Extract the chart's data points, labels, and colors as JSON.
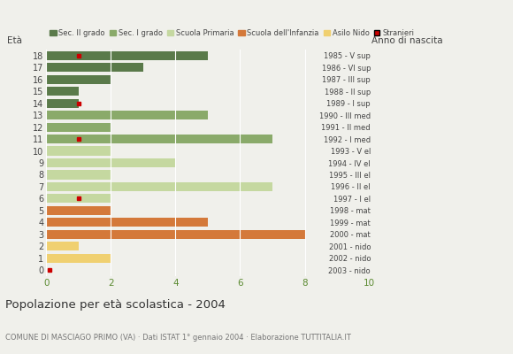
{
  "ages": [
    18,
    17,
    16,
    15,
    14,
    13,
    12,
    11,
    10,
    9,
    8,
    7,
    6,
    5,
    4,
    3,
    2,
    1,
    0
  ],
  "years": [
    "1985 - V sup",
    "1986 - VI sup",
    "1987 - III sup",
    "1988 - II sup",
    "1989 - I sup",
    "1990 - III med",
    "1991 - II med",
    "1992 - I med",
    "1993 - V el",
    "1994 - IV el",
    "1995 - III el",
    "1996 - II el",
    "1997 - I el",
    "1998 - mat",
    "1999 - mat",
    "2000 - mat",
    "2001 - nido",
    "2002 - nido",
    "2003 - nido"
  ],
  "values": [
    5,
    3,
    2,
    1,
    1,
    5,
    2,
    7,
    2,
    4,
    2,
    7,
    2,
    2,
    5,
    8,
    1,
    2,
    0
  ],
  "bar_colors": [
    "#5a7a4a",
    "#5a7a4a",
    "#5a7a4a",
    "#5a7a4a",
    "#5a7a4a",
    "#8aaa6a",
    "#8aaa6a",
    "#8aaa6a",
    "#c5d8a0",
    "#c5d8a0",
    "#c5d8a0",
    "#c5d8a0",
    "#c5d8a0",
    "#d4793a",
    "#d4793a",
    "#d4793a",
    "#f0d070",
    "#f0d070",
    "#d4793a"
  ],
  "stranieri_ages": [
    18,
    14,
    11,
    6,
    0
  ],
  "stranieri_x": [
    1,
    1,
    1,
    1,
    0.1
  ],
  "color_sec2": "#5a7a4a",
  "color_sec1": "#8aaa6a",
  "color_primaria": "#c5d8a0",
  "color_infanzia": "#d4793a",
  "color_nido": "#f0d070",
  "color_stranieri": "#cc0000",
  "title": "Popolazione per età scolastica - 2004",
  "subtitle": "COMUNE DI MASCIAGO PRIMO (VA) · Dati ISTAT 1° gennaio 2004 · Elaborazione TUTTITALIA.IT",
  "label_eta": "Età",
  "label_anno": "Anno di nascita",
  "xlim": [
    0,
    10
  ],
  "xticks": [
    0,
    2,
    4,
    6,
    8,
    10
  ],
  "background_color": "#f0f0eb",
  "grid_color": "#ffffff",
  "bar_height": 0.75
}
